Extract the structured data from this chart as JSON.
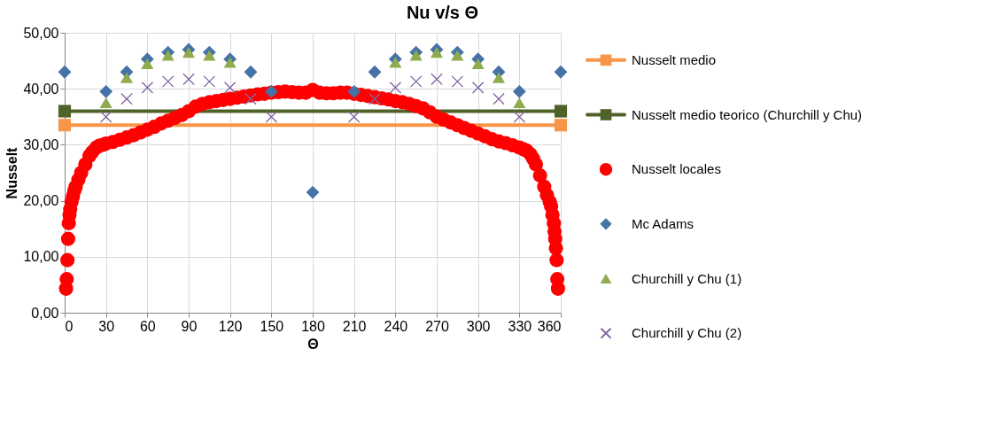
{
  "chart_data": {
    "type": "scatter",
    "title": "Nu v/s Θ",
    "xlabel": "Θ",
    "ylabel": "Nusselt",
    "xlim": [
      0,
      360
    ],
    "xticks": [
      0,
      30,
      60,
      90,
      120,
      150,
      180,
      210,
      240,
      270,
      300,
      330,
      360
    ],
    "ylim": [
      0,
      50
    ],
    "yticks": [
      {
        "value": 0,
        "label": "0,00"
      },
      {
        "value": 10,
        "label": "10,00"
      },
      {
        "value": 20,
        "label": "20,00"
      },
      {
        "value": 30,
        "label": "30,00"
      },
      {
        "value": 40,
        "label": "40,00"
      },
      {
        "value": 50,
        "label": "50,00"
      }
    ],
    "grid": true,
    "legend": "right",
    "series": [
      {
        "name": "Nusselt medio",
        "type": "line",
        "marker": "square",
        "color": "#f79646",
        "x": [
          0,
          360
        ],
        "values": [
          33.5,
          33.5
        ]
      },
      {
        "name": "Nusselt medio teorico (Churchill y Chu)",
        "type": "line",
        "marker": "square",
        "color": "#4f6228",
        "x": [
          0,
          360
        ],
        "values": [
          36,
          36
        ]
      },
      {
        "name": "Nusselt locales",
        "marker": "circle",
        "color": "#ff0000",
        "x": [
          1,
          1.5,
          2,
          2.5,
          3,
          3.5,
          4,
          5,
          6,
          7,
          8,
          10,
          12,
          15,
          18,
          20,
          23,
          25,
          28,
          30,
          35,
          40,
          45,
          50,
          55,
          60,
          65,
          70,
          75,
          80,
          85,
          90,
          95,
          100,
          105,
          110,
          115,
          120,
          125,
          130,
          135,
          140,
          145,
          150,
          155,
          160,
          165,
          170,
          175,
          180,
          185,
          190,
          195,
          200,
          205,
          210,
          215,
          220,
          225,
          230,
          235,
          240,
          245,
          250,
          255,
          260,
          265,
          270,
          275,
          280,
          285,
          290,
          295,
          300,
          305,
          310,
          315,
          320,
          325,
          330,
          333,
          335,
          338,
          340,
          342,
          345,
          348,
          350,
          352,
          353,
          354,
          355,
          355.5,
          356,
          356.5,
          357,
          357.5,
          358
        ],
        "values": [
          4.3,
          6,
          9.4,
          13.2,
          16,
          17.5,
          18.5,
          19.8,
          20.8,
          21.8,
          22.5,
          23.8,
          25,
          26.5,
          28,
          28.7,
          29.5,
          29.8,
          30,
          30.2,
          30.5,
          30.9,
          31.3,
          31.7,
          32.2,
          32.7,
          33.2,
          33.8,
          34.3,
          34.8,
          35.3,
          36,
          36.8,
          37.3,
          37.6,
          37.8,
          38,
          38.2,
          38.4,
          38.6,
          38.8,
          39,
          39.1,
          39.3,
          39.4,
          39.5,
          39.4,
          39.3,
          39.3,
          39.8,
          39.3,
          39.2,
          39.2,
          39.3,
          39.3,
          39.1,
          38.9,
          38.7,
          38.5,
          38.3,
          38.1,
          37.8,
          37.6,
          37.3,
          36.9,
          36.5,
          35.8,
          35,
          34.5,
          34,
          33.5,
          33,
          32.5,
          32,
          31.5,
          31,
          30.6,
          30.3,
          29.9,
          29.5,
          29.2,
          29,
          28.3,
          27.5,
          26.5,
          24.5,
          22.5,
          21,
          19.8,
          19,
          17.5,
          16,
          14.5,
          13.2,
          11.5,
          9.4,
          6,
          4.3
        ]
      },
      {
        "name": "Mc Adams",
        "marker": "diamond",
        "color": "#4572a7",
        "x": [
          0,
          30,
          45,
          60,
          75,
          90,
          105,
          120,
          135,
          150,
          180,
          210,
          225,
          240,
          255,
          270,
          285,
          300,
          315,
          330,
          360
        ],
        "values": [
          43,
          39.5,
          43,
          45.3,
          46.5,
          47,
          46.5,
          45.3,
          43,
          39.5,
          21.5,
          39.5,
          43,
          45.3,
          46.5,
          47,
          46.5,
          45.3,
          43,
          39.5,
          43
        ]
      },
      {
        "name": "Churchill y Chu (1)",
        "marker": "triangle",
        "color": "#8fab4f",
        "x": [
          30,
          45,
          60,
          75,
          90,
          105,
          120,
          240,
          255,
          270,
          285,
          300,
          315,
          330
        ],
        "values": [
          37.5,
          42,
          44.5,
          46,
          46.5,
          46,
          44.7,
          44.7,
          46,
          46.5,
          46,
          44.5,
          42,
          37.5
        ]
      },
      {
        "name": "Churchill y Chu (2)",
        "marker": "cross",
        "color": "#8064a2",
        "x": [
          30,
          45,
          60,
          75,
          90,
          105,
          120,
          135,
          150,
          210,
          225,
          240,
          255,
          270,
          285,
          300,
          315,
          330
        ],
        "values": [
          35,
          38.2,
          40.2,
          41.3,
          41.7,
          41.3,
          40.2,
          38.2,
          35,
          35,
          38.2,
          40.2,
          41.3,
          41.7,
          41.3,
          40.2,
          38.2,
          35
        ]
      }
    ]
  }
}
